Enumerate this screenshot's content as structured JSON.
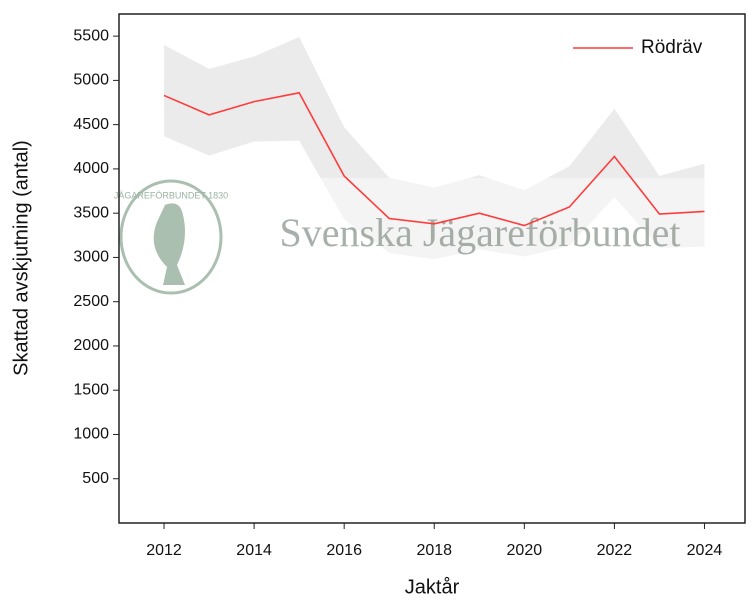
{
  "chart_data": {
    "type": "line",
    "xlabel": "Jaktår",
    "ylabel": "Skattad avskjutning (antal)",
    "watermark": "Svenska Jägareförbundet",
    "logo_text": "JÄGAREFÖRBUNDET 1830",
    "x": [
      2012,
      2013,
      2014,
      2015,
      2016,
      2017,
      2018,
      2019,
      2020,
      2021,
      2022,
      2023,
      2024
    ],
    "series": [
      {
        "name": "Rödräv",
        "color": "#ff3b3b",
        "values": [
          4830,
          4610,
          4760,
          4860,
          3920,
          3440,
          3380,
          3500,
          3360,
          3570,
          4140,
          3490,
          3520
        ]
      }
    ],
    "band": {
      "color": "#e6e6e6",
      "upper": [
        5400,
        5130,
        5270,
        5490,
        4470,
        3900,
        3790,
        3930,
        3760,
        4030,
        4680,
        3920,
        4060
      ],
      "lower": [
        4370,
        4150,
        4310,
        4320,
        3430,
        3050,
        2980,
        3090,
        3010,
        3130,
        3680,
        3110,
        3120
      ]
    },
    "xlim": [
      2011,
      2024.9
    ],
    "ylim": [
      0,
      5750
    ],
    "xticks": [
      2012,
      2014,
      2016,
      2018,
      2020,
      2022,
      2024
    ],
    "yticks": [
      500,
      1000,
      1500,
      2000,
      2500,
      3000,
      3500,
      4000,
      4500,
      5000,
      5500
    ],
    "legend": "upper right"
  }
}
